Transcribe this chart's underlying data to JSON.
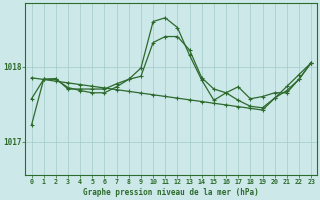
{
  "background_color": "#cce8e8",
  "grid_color": "#aacece",
  "line_color": "#2d6a2d",
  "xlabel": "Graphe pression niveau de la mer (hPa)",
  "ylim_min": 1016.55,
  "ylim_max": 1018.85,
  "yticks": [
    1017,
    1018
  ],
  "xticks": [
    0,
    1,
    2,
    3,
    4,
    5,
    6,
    7,
    8,
    9,
    10,
    11,
    12,
    13,
    14,
    15,
    16,
    17,
    18,
    19,
    20,
    21,
    22,
    23
  ],
  "s1": [
    1017.57,
    1017.83,
    1017.84,
    1017.72,
    1017.7,
    1017.7,
    1017.72,
    1017.77,
    1017.82,
    1017.87,
    1018.32,
    1018.4,
    1018.4,
    1018.22,
    1017.85,
    1017.72,
    1017.68,
    1017.76,
    1017.58,
    1017.6,
    1017.66,
    1017.66,
    1017.84,
    1018.05
  ],
  "s2": [
    1017.83,
    1017.83,
    1017.83,
    1017.72,
    1017.7,
    1017.7,
    1017.7,
    1017.7,
    1017.7,
    1017.7,
    1017.7,
    1017.7,
    1017.7,
    1017.63,
    1017.58,
    1017.52,
    1017.48,
    1017.45,
    1017.42,
    1017.42,
    1017.45,
    1017.5,
    1017.7,
    1018.05
  ],
  "s3": [
    1017.22,
    1017.83,
    1017.84,
    1017.72,
    1017.7,
    1017.65,
    1017.65,
    1017.73,
    1017.82,
    1017.98,
    1018.6,
    1018.65,
    1018.52,
    1018.15,
    1017.82,
    1017.55,
    1017.65,
    1017.55,
    1017.48,
    1017.45,
    1017.58,
    1017.68,
    1017.83,
    1018.05
  ]
}
